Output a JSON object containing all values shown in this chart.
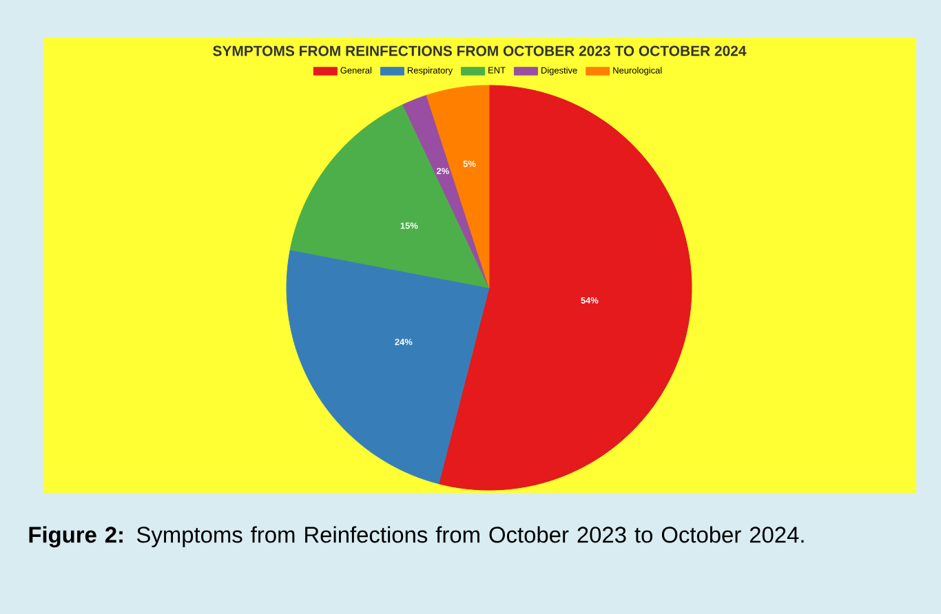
{
  "chart_data": {
    "type": "pie",
    "title": "SYMPTOMS FROM REINFECTIONS FROM OCTOBER 2023 TO OCTOBER 2024",
    "categories": [
      "General",
      "Respiratory",
      "ENT",
      "Digestive",
      "Neurological"
    ],
    "values": [
      54,
      24,
      15,
      2,
      5
    ],
    "value_labels": [
      "54%",
      "24%",
      "15%",
      "2%",
      "5%"
    ],
    "colors": [
      "#e41a1c",
      "#377eb8",
      "#4daf4a",
      "#984ea3",
      "#ff7f00"
    ],
    "legend": "top",
    "annotations": [
      "**Figure 2:** Symptoms from Reinfections from October 2023 to October 2024."
    ]
  }
}
